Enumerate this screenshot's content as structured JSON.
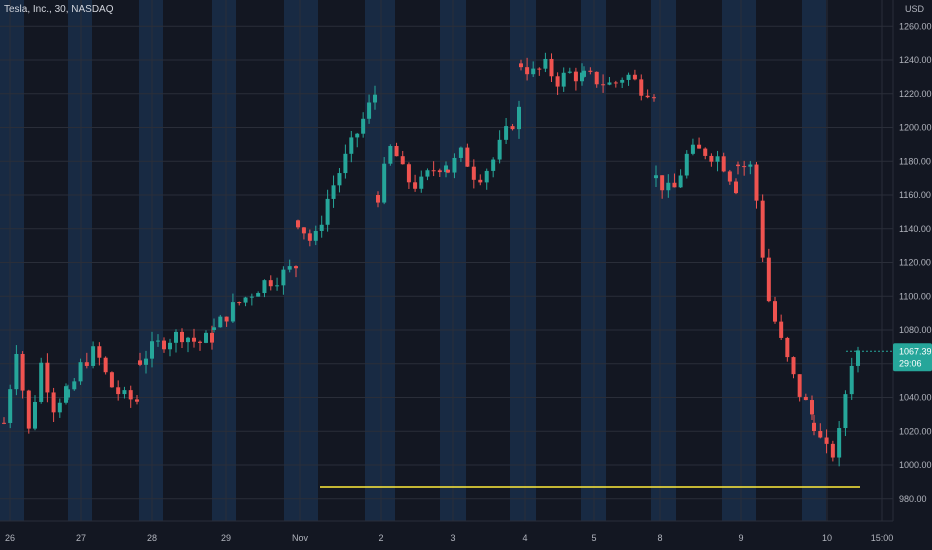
{
  "header": {
    "title": "Tesla, Inc., 30, NASDAQ"
  },
  "chart_data": {
    "type": "candlestick",
    "title": "Tesla, Inc., 30, NASDAQ",
    "currency_label": "USD",
    "y_ticks": [
      980,
      1000,
      1020,
      1040,
      1060,
      1080,
      1100,
      1120,
      1140,
      1160,
      1180,
      1200,
      1220,
      1240,
      1260
    ],
    "y_tick_labels": [
      "980.00",
      "1000.00",
      "1020.00",
      "1040.00",
      "1060.00",
      "1080.00",
      "1100.00",
      "1120.00",
      "1140.00",
      "1160.00",
      "1180.00",
      "1200.00",
      "1220.00",
      "1240.00",
      "1260.00"
    ],
    "x_labels": [
      "26",
      "27",
      "28",
      "29",
      "Nov",
      "2",
      "3",
      "4",
      "5",
      "8",
      "9",
      "10",
      "15:00"
    ],
    "last_price": "1067.39",
    "countdown": "29:06",
    "horizontal_line_price": 987,
    "colors": {
      "up": "#26a69a",
      "down": "#ef5350",
      "background": "#131722",
      "session_band": "#1e3a5f",
      "hline": "#ffeb3b",
      "badge": "#26a69a"
    },
    "days": [
      {
        "label": "26",
        "open": 1025,
        "close": 1060,
        "high": 1090,
        "low": 1000
      },
      {
        "label": "27",
        "open": 1060,
        "close": 1040,
        "high": 1070,
        "low": 1030
      },
      {
        "label": "28",
        "open": 1060,
        "close": 1078,
        "high": 1082,
        "low": 1055
      },
      {
        "label": "29",
        "open": 1078,
        "close": 1110,
        "high": 1115,
        "low": 1070
      },
      {
        "label": "Nov",
        "open": 1140,
        "close": 1220,
        "high": 1223,
        "low": 1120
      },
      {
        "label": "2",
        "open": 1165,
        "close": 1180,
        "high": 1205,
        "low": 1155
      },
      {
        "label": "3",
        "open": 1175,
        "close": 1210,
        "high": 1215,
        "low": 1155
      },
      {
        "label": "4",
        "open": 1240,
        "close": 1230,
        "high": 1242,
        "low": 1215
      },
      {
        "label": "5",
        "open": 1232,
        "close": 1222,
        "high": 1236,
        "low": 1210
      },
      {
        "label": "8",
        "open": 1170,
        "close": 1185,
        "high": 1192,
        "low": 1140
      },
      {
        "label": "9",
        "open": 1178,
        "close": 1040,
        "high": 1180,
        "low": 1015
      },
      {
        "label": "10",
        "open": 1020,
        "close": 1067.39,
        "high": 1075,
        "low": 995
      }
    ]
  }
}
